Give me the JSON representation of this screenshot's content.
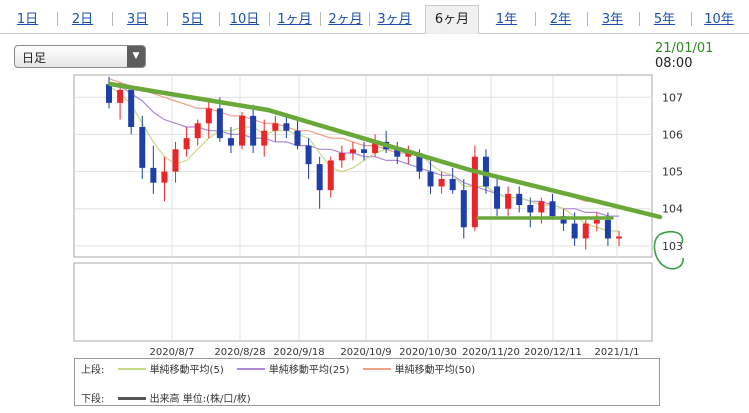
{
  "tabs": [
    "1日",
    "2日",
    "3日",
    "5日",
    "10日",
    "1ヶ月",
    "2ヶ月",
    "3ヶ月",
    "6ヶ月",
    "1年",
    "2年",
    "3年",
    "5年",
    "10年"
  ],
  "active_tab": "6ヶ月",
  "period_select": {
    "value": "日足"
  },
  "timestamp": {
    "date": "21/01/01",
    "time": "08:00"
  },
  "legend": {
    "upper_label": "上段:",
    "lower_label": "下段:",
    "items": [
      {
        "label": "単純移動平均(5)",
        "color": "#c5d98a"
      },
      {
        "label": "単純移動平均(25)",
        "color": "#b08ad8"
      },
      {
        "label": "単純移動平均(50)",
        "color": "#f0a088"
      }
    ],
    "volume": {
      "label": "出来高 単位:(株/口/枚)",
      "color": "#555555"
    }
  },
  "colors": {
    "up": "#e8262a",
    "down": "#1f3fa8",
    "trendline": "#6aa83a",
    "annotation": "#3aa04a"
  },
  "chart_data": {
    "type": "candlestick",
    "title": "",
    "ylim": [
      102.7,
      107.6
    ],
    "y_ticks": [
      103,
      104,
      105,
      106,
      107
    ],
    "x_ticks": [
      "2020/8/7",
      "2020/8/28",
      "2020/9/18",
      "2020/10/9",
      "2020/10/30",
      "2020/11/20",
      "2020/12/11",
      "2021/1/1"
    ],
    "candles": [
      [
        107.35,
        107.55,
        106.7,
        106.85
      ],
      [
        106.85,
        107.4,
        106.4,
        107.2
      ],
      [
        107.2,
        107.3,
        106.0,
        106.2
      ],
      [
        106.2,
        106.5,
        104.8,
        105.1
      ],
      [
        105.1,
        105.7,
        104.4,
        104.7
      ],
      [
        104.7,
        105.4,
        104.2,
        105.0
      ],
      [
        105.0,
        105.8,
        104.7,
        105.6
      ],
      [
        105.6,
        106.2,
        105.4,
        105.9
      ],
      [
        105.9,
        106.4,
        105.7,
        106.3
      ],
      [
        106.3,
        106.9,
        105.9,
        106.7
      ],
      [
        106.7,
        107.0,
        105.8,
        105.9
      ],
      [
        105.9,
        106.2,
        105.5,
        105.7
      ],
      [
        105.7,
        106.6,
        105.6,
        106.5
      ],
      [
        106.5,
        106.8,
        105.5,
        105.7
      ],
      [
        105.7,
        106.4,
        105.4,
        106.1
      ],
      [
        106.1,
        106.5,
        105.8,
        106.3
      ],
      [
        106.3,
        106.5,
        105.9,
        106.1
      ],
      [
        106.1,
        106.4,
        105.6,
        105.7
      ],
      [
        105.7,
        105.9,
        104.8,
        105.2
      ],
      [
        105.2,
        105.4,
        104.0,
        104.5
      ],
      [
        104.5,
        105.4,
        104.3,
        105.3
      ],
      [
        105.3,
        105.7,
        105.1,
        105.5
      ],
      [
        105.5,
        105.8,
        105.3,
        105.6
      ],
      [
        105.6,
        105.8,
        105.3,
        105.5
      ],
      [
        105.5,
        106.0,
        105.4,
        105.8
      ],
      [
        105.8,
        106.1,
        105.5,
        105.6
      ],
      [
        105.6,
        105.8,
        105.2,
        105.4
      ],
      [
        105.4,
        105.7,
        105.2,
        105.5
      ],
      [
        105.5,
        105.6,
        104.8,
        105.0
      ],
      [
        105.0,
        105.3,
        104.4,
        104.6
      ],
      [
        104.6,
        105.0,
        104.4,
        104.8
      ],
      [
        104.8,
        105.1,
        104.4,
        104.5
      ],
      [
        104.5,
        104.8,
        103.2,
        103.5
      ],
      [
        103.5,
        105.7,
        103.4,
        105.4
      ],
      [
        105.4,
        105.6,
        104.4,
        104.6
      ],
      [
        104.6,
        104.9,
        103.8,
        104.0
      ],
      [
        104.0,
        104.6,
        103.8,
        104.4
      ],
      [
        104.4,
        104.6,
        103.9,
        104.1
      ],
      [
        104.1,
        104.3,
        103.5,
        103.9
      ],
      [
        103.9,
        104.3,
        103.6,
        104.2
      ],
      [
        104.2,
        104.4,
        103.7,
        103.8
      ],
      [
        103.8,
        104.0,
        103.4,
        103.6
      ],
      [
        103.6,
        103.9,
        103.0,
        103.2
      ],
      [
        103.2,
        103.7,
        102.9,
        103.6
      ],
      [
        103.6,
        103.9,
        103.4,
        103.7
      ],
      [
        103.7,
        103.9,
        103.0,
        103.2
      ],
      [
        103.2,
        103.4,
        103.0,
        103.25
      ]
    ],
    "sma_5": [
      107.3,
      107.1,
      106.8,
      106.3,
      105.8,
      105.4,
      105.2,
      105.3,
      105.6,
      105.9,
      106.1,
      106.1,
      106.2,
      106.2,
      106.0,
      106.1,
      106.1,
      106.0,
      105.9,
      105.5,
      105.1,
      105.0,
      105.1,
      105.3,
      105.5,
      105.6,
      105.6,
      105.6,
      105.5,
      105.2,
      105.0,
      104.9,
      104.6,
      104.6,
      104.6,
      104.4,
      104.3,
      104.3,
      104.2,
      104.1,
      104.1,
      104.0,
      103.8,
      103.6,
      103.5,
      103.4,
      103.4
    ],
    "sma_25": [
      107.4,
      107.3,
      107.1,
      106.9,
      106.6,
      106.4,
      106.3,
      106.2,
      106.2,
      106.1,
      106.1,
      106.0,
      106.0,
      105.9,
      105.9,
      105.8,
      105.8,
      105.7,
      105.7,
      105.6,
      105.6,
      105.5,
      105.5,
      105.4,
      105.4,
      105.3,
      105.3,
      105.2,
      105.1,
      105.0,
      104.9,
      104.9,
      104.7,
      104.6,
      104.5,
      104.4,
      104.3,
      104.3,
      104.2,
      104.2,
      104.1,
      104.0,
      104.0,
      103.9,
      103.9,
      103.8,
      103.8
    ],
    "sma_50": [
      107.5,
      107.4,
      107.3,
      107.2,
      107.1,
      107.0,
      106.9,
      106.8,
      106.7,
      106.7,
      106.6,
      106.5,
      106.5,
      106.4,
      106.3,
      106.3,
      106.2,
      106.1,
      106.1,
      106.0,
      105.9,
      105.9,
      105.8,
      105.7,
      105.7,
      105.6,
      105.5,
      105.5,
      105.4,
      105.3,
      105.3,
      105.2,
      105.1,
      105.0,
      104.9,
      104.9,
      104.8,
      104.7,
      104.6,
      104.6,
      104.5,
      104.4,
      104.3,
      104.2,
      104.2,
      104.1,
      104.0
    ]
  }
}
